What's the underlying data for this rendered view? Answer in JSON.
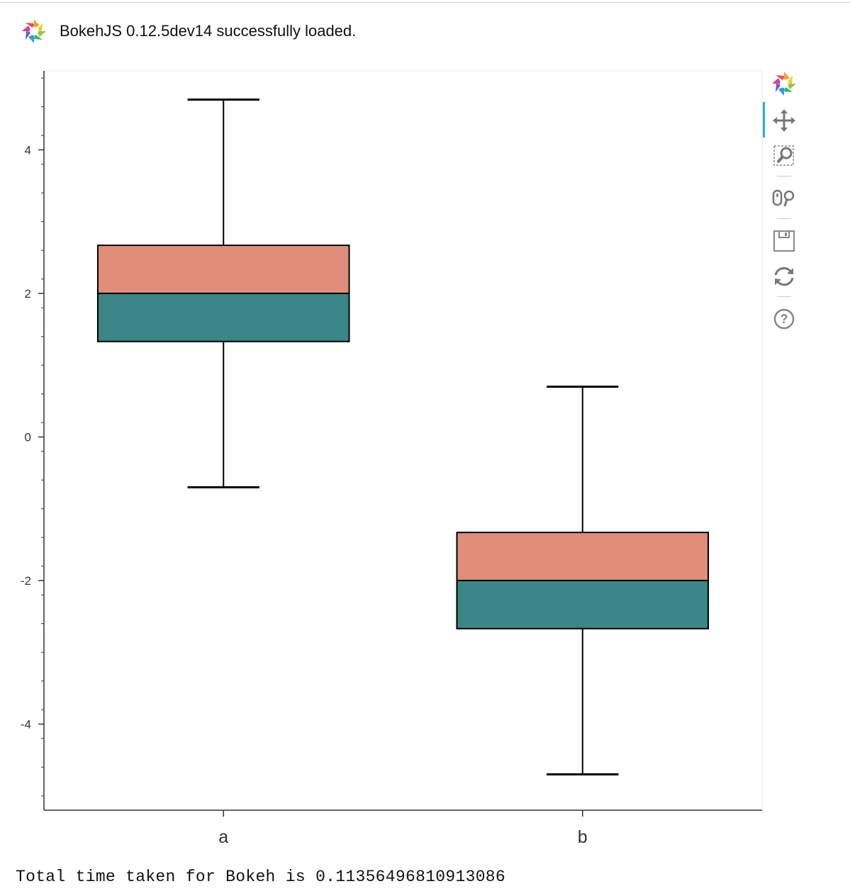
{
  "loader": {
    "message": "BokehJS 0.12.5dev14 successfully loaded."
  },
  "toolbar": {
    "items": [
      {
        "name": "bokeh-logo-icon",
        "interactable": true
      },
      {
        "name": "pan-tool-icon",
        "interactable": true,
        "active": true
      },
      {
        "name": "box-zoom-tool-icon",
        "interactable": true
      },
      {
        "name": "wheel-zoom-tool-icon",
        "interactable": true
      },
      {
        "name": "save-tool-icon",
        "interactable": true
      },
      {
        "name": "reset-tool-icon",
        "interactable": true
      },
      {
        "name": "help-tool-icon",
        "interactable": true
      }
    ]
  },
  "colors": {
    "upper_box": "#e08e79",
    "lower_box": "#3b8686",
    "stroke": "#000000",
    "axis": "#444444",
    "active_tool": "#26aae1"
  },
  "chart_data": {
    "type": "box",
    "categories": [
      "a",
      "b"
    ],
    "boxes": [
      {
        "category": "a",
        "lower_whisker": -0.7,
        "q1": 1.33,
        "median": 2.0,
        "q3": 2.67,
        "upper_whisker": 4.7
      },
      {
        "category": "b",
        "lower_whisker": -4.7,
        "q1": -2.67,
        "median": -2.0,
        "q3": -1.33,
        "upper_whisker": 0.7
      }
    ],
    "y_ticks": [
      -4,
      -2,
      0,
      2,
      4
    ],
    "y_tick_labels": [
      "-4",
      "-2",
      "0",
      "2",
      "4"
    ],
    "ylim": [
      -5.2,
      5.1
    ],
    "title": "",
    "xlabel": "",
    "ylabel": "",
    "grid": false
  },
  "footer": {
    "text": "Total time taken for Bokeh is 0.11356496810913086"
  }
}
